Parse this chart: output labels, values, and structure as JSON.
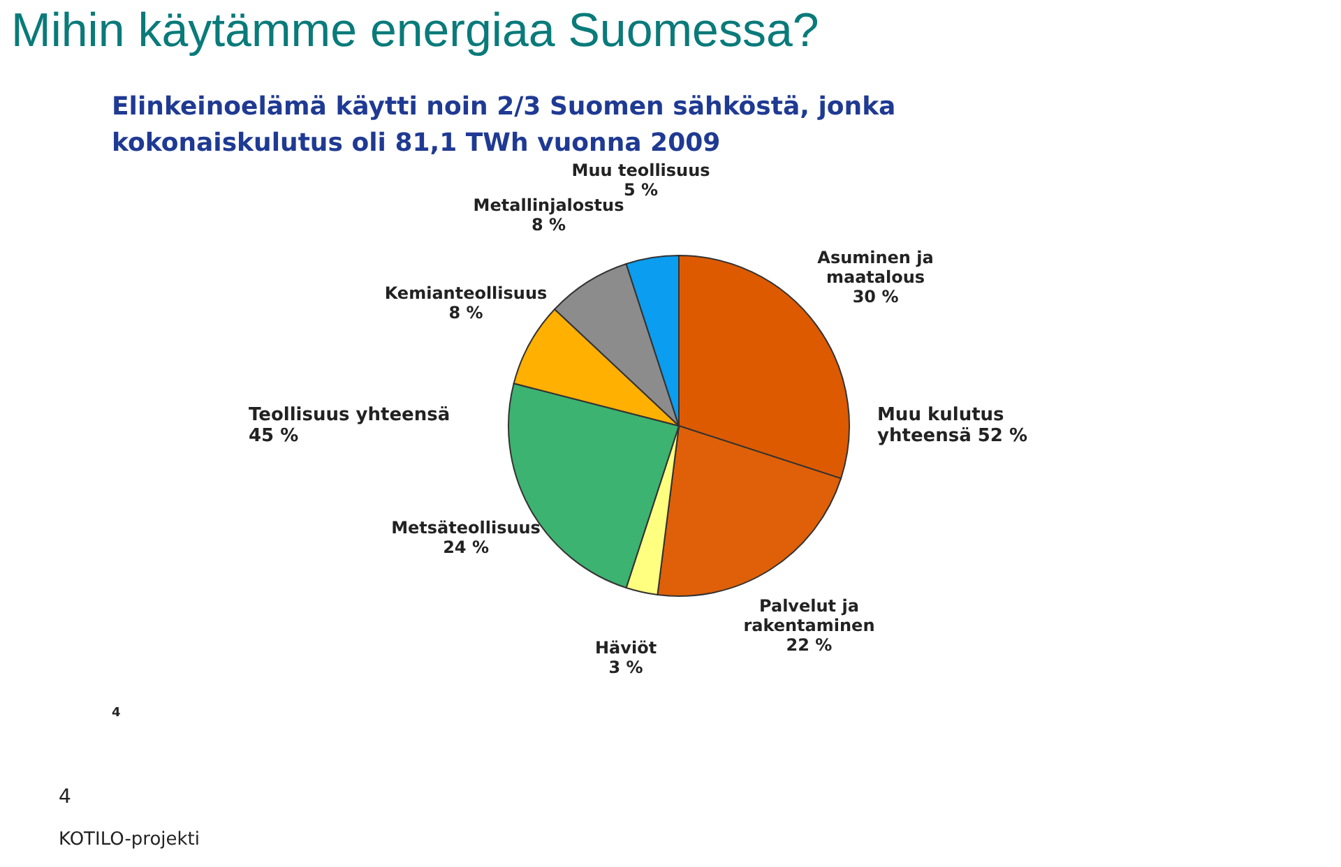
{
  "chart_data": {
    "type": "pie",
    "title": "Mihin käytämme energiaa Suomessa?",
    "subtitle": "Elinkeinoelämä käytti noin 2/3 Suomen sähköstä, jonka kokonaiskulutus oli 81,1 TWh vuonna 2009",
    "categories": [
      "Asuminen ja maatalous",
      "Palvelut ja rakentaminen",
      "Häviöt",
      "Metsäteollisuus",
      "Kemianteollisuus",
      "Metallinjalostus",
      "Muu teollisuus"
    ],
    "values": [
      30,
      22,
      3,
      24,
      8,
      8,
      5
    ],
    "value_labels": [
      "30 %",
      "22 %",
      "3 %",
      "24 %",
      "8 %",
      "8 %",
      "5 %"
    ],
    "colors": [
      "#dd5a00",
      "#df6008",
      "#ffff80",
      "#3cb371",
      "#ffb000",
      "#8c8c8c",
      "#0a9df0"
    ],
    "annotations": [
      "Muu kulutus yhteensä 52 %",
      "Teollisuus yhteensä 45 %",
      "4",
      "4",
      "KOTILO-projekti"
    ]
  }
}
